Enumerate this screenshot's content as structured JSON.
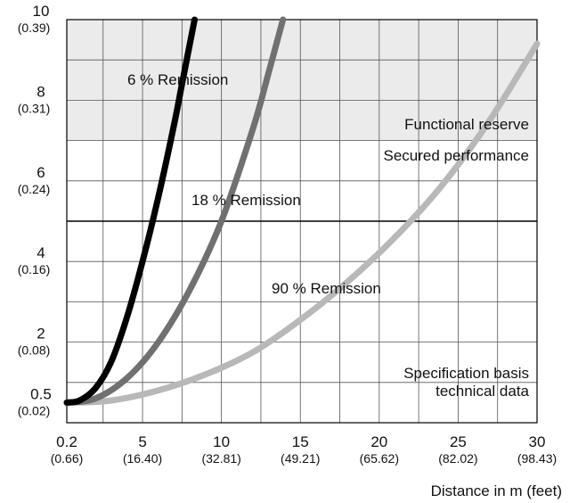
{
  "chart_data": {
    "type": "line",
    "title": "",
    "xlabel": "Distance in m (feet)",
    "ylabel": "",
    "xlim": [
      0.2,
      30
    ],
    "ylim": [
      0,
      10
    ],
    "grid": true,
    "x_ticks": [
      {
        "value": 0.2,
        "label": "0.2",
        "sub": "(0.66)"
      },
      {
        "value": 5,
        "label": "5",
        "sub": "(16.40)"
      },
      {
        "value": 10,
        "label": "10",
        "sub": "(32.81)"
      },
      {
        "value": 15,
        "label": "15",
        "sub": "(49.21)"
      },
      {
        "value": 20,
        "label": "20",
        "sub": "(65.62)"
      },
      {
        "value": 25,
        "label": "25",
        "sub": "(82.02)"
      },
      {
        "value": 30,
        "label": "30",
        "sub": "(98.43)"
      }
    ],
    "y_ticks": [
      {
        "value": 0.5,
        "label": "0.5",
        "sub": "(0.02)"
      },
      {
        "value": 2,
        "label": "2",
        "sub": "(0.08)"
      },
      {
        "value": 4,
        "label": "4",
        "sub": "(0.16)"
      },
      {
        "value": 6,
        "label": "6",
        "sub": "(0.24)"
      },
      {
        "value": 8,
        "label": "8",
        "sub": "(0.31)"
      },
      {
        "value": 10,
        "label": "10",
        "sub": "(0.39)"
      }
    ],
    "bands": [
      {
        "from": 7.0,
        "to": 10,
        "color": "#ebebeb"
      }
    ],
    "reference_lines": [
      {
        "y": 5.0
      }
    ],
    "annotations": [
      {
        "text": "Functional reserve"
      },
      {
        "text": "Secured performance"
      },
      {
        "text": "Specification basis"
      },
      {
        "text": "technical data"
      }
    ],
    "series": [
      {
        "name": "6 % Remission",
        "color": "#000000",
        "x": [
          0.2,
          1,
          2,
          3,
          4,
          5,
          6,
          7,
          7.5,
          8,
          8.3
        ],
        "y": [
          0.5,
          0.55,
          0.85,
          1.5,
          2.6,
          4.0,
          5.6,
          7.4,
          8.4,
          9.4,
          10.0
        ]
      },
      {
        "name": "18 % Remission",
        "color": "#707070",
        "x": [
          0.2,
          2,
          4,
          6,
          8,
          10,
          12,
          13,
          13.9
        ],
        "y": [
          0.5,
          0.6,
          1.1,
          2.0,
          3.3,
          5.0,
          7.3,
          8.7,
          10.0
        ]
      },
      {
        "name": "90 % Remission",
        "color": "#b8b8b8",
        "x": [
          0.2,
          3,
          6,
          9,
          12,
          15,
          18,
          21,
          24,
          27,
          30
        ],
        "y": [
          0.5,
          0.55,
          0.8,
          1.2,
          1.75,
          2.55,
          3.5,
          4.6,
          5.9,
          7.5,
          9.4
        ]
      }
    ]
  }
}
